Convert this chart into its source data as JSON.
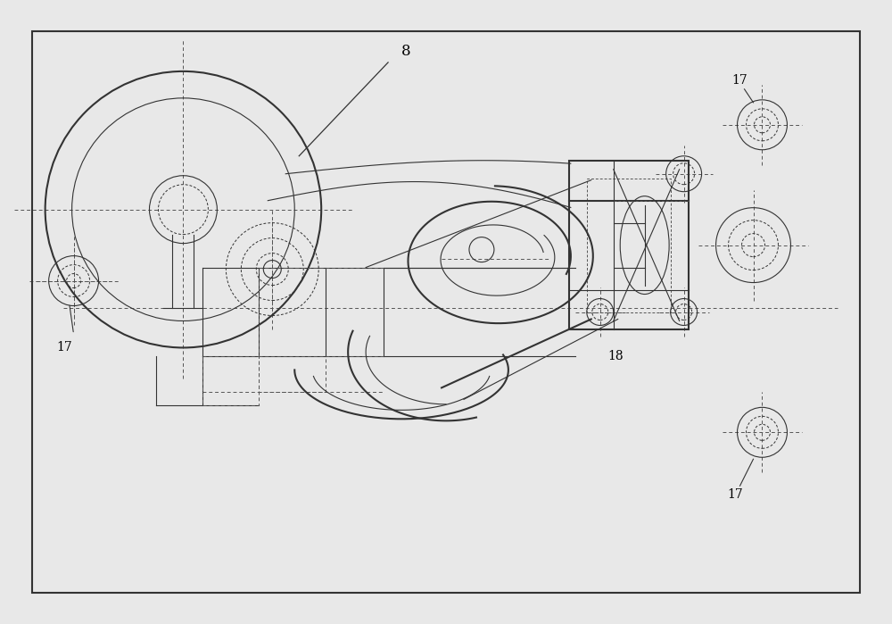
{
  "bg_color": "#f0f0f0",
  "border_color": "#333333",
  "line_color": "#333333",
  "dashed_color": "#555555",
  "title": "",
  "label_8": "8",
  "label_17": "17",
  "label_18": "18",
  "figsize": [
    10.0,
    6.99
  ],
  "dpi": 100
}
